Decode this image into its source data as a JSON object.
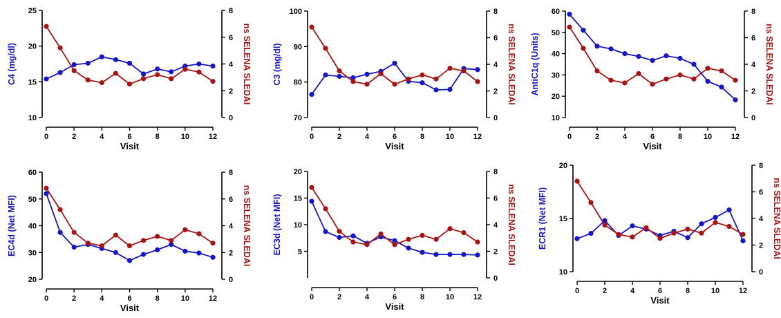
{
  "colors": {
    "left_series": "#1515cc",
    "right_series": "#a81414",
    "axis": "#000000"
  },
  "chart_data": [
    {
      "type": "line",
      "xlabel": "Visit",
      "ylabel": "C4 (mg/dl)",
      "y2label": "ns SELENA SLEDAI",
      "x": [
        0,
        1,
        2,
        3,
        4,
        5,
        6,
        7,
        8,
        9,
        10,
        11,
        12
      ],
      "xticks": [
        0,
        2,
        4,
        6,
        8,
        10,
        12
      ],
      "ylim": [
        10,
        25
      ],
      "yticks": [
        10,
        15,
        20,
        25
      ],
      "y2lim": [
        0,
        8
      ],
      "y2ticks": [
        0,
        2,
        4,
        6,
        8
      ],
      "series": [
        {
          "axis": "left",
          "values": [
            15.4,
            16.3,
            17.4,
            17.6,
            18.5,
            18.1,
            17.6,
            16.1,
            16.8,
            16.4,
            17.2,
            17.5,
            17.2
          ]
        },
        {
          "axis": "right",
          "values": [
            6.8,
            5.2,
            3.5,
            2.8,
            2.6,
            3.3,
            2.5,
            2.9,
            3.2,
            2.9,
            3.6,
            3.4,
            2.7
          ]
        }
      ]
    },
    {
      "type": "line",
      "xlabel": "Visit",
      "ylabel": "C3 (mg/dl)",
      "y2label": "ns SELENA SLEDAI",
      "x": [
        0,
        1,
        2,
        3,
        4,
        5,
        6,
        7,
        8,
        9,
        10,
        11,
        12
      ],
      "xticks": [
        0,
        2,
        4,
        6,
        8,
        10,
        12
      ],
      "ylim": [
        70,
        100
      ],
      "yticks": [
        70,
        80,
        90,
        100
      ],
      "y2lim": [
        0,
        8
      ],
      "y2ticks": [
        0,
        2,
        4,
        6,
        8
      ],
      "series": [
        {
          "axis": "left",
          "values": [
            76.5,
            82,
            81.6,
            81.2,
            82.2,
            83,
            85.3,
            80.2,
            79.8,
            77.8,
            77.9,
            83.8,
            83.5
          ]
        },
        {
          "axis": "right",
          "values": [
            6.8,
            5.2,
            3.5,
            2.7,
            2.5,
            3.3,
            2.5,
            2.9,
            3.2,
            2.9,
            3.7,
            3.5,
            2.7
          ]
        }
      ]
    },
    {
      "type": "line",
      "xlabel": "Visit",
      "ylabel": "AntiC1q (Units)",
      "y2label": "ns SELENA SLEDAI",
      "x": [
        0,
        1,
        2,
        3,
        4,
        5,
        6,
        7,
        8,
        9,
        10,
        11,
        12
      ],
      "xticks": [
        0,
        2,
        4,
        6,
        8,
        10,
        12
      ],
      "ylim": [
        10,
        60
      ],
      "yticks": [
        10,
        20,
        30,
        40,
        50,
        60
      ],
      "y2lim": [
        0,
        8
      ],
      "y2ticks": [
        0,
        2,
        4,
        6,
        8
      ],
      "series": [
        {
          "axis": "left",
          "values": [
            58.5,
            51,
            43.5,
            42.2,
            40,
            38.7,
            36.8,
            39,
            37.8,
            35,
            27,
            24.3,
            18.3
          ]
        },
        {
          "axis": "right",
          "values": [
            6.8,
            5.2,
            3.5,
            2.8,
            2.6,
            3.3,
            2.5,
            2.9,
            3.2,
            2.9,
            3.7,
            3.5,
            2.8
          ]
        }
      ]
    },
    {
      "type": "line",
      "xlabel": "Visit",
      "ylabel": "EC4d (Net MFI)",
      "y2label": "ns SELENA SLEDAI",
      "x": [
        0,
        1,
        2,
        3,
        4,
        5,
        6,
        7,
        8,
        9,
        10,
        11,
        12
      ],
      "xticks": [
        0,
        2,
        4,
        6,
        8,
        10,
        12
      ],
      "ylim": [
        20,
        60
      ],
      "yticks": [
        20,
        30,
        40,
        50,
        60
      ],
      "y2lim": [
        0,
        8
      ],
      "y2ticks": [
        0,
        2,
        4,
        6,
        8
      ],
      "series": [
        {
          "axis": "left",
          "values": [
            52,
            37.5,
            32,
            33,
            31.5,
            30,
            27,
            29.3,
            31,
            33,
            30.5,
            29.8,
            28.2
          ]
        },
        {
          "axis": "right",
          "values": [
            6.8,
            5.2,
            3.5,
            2.7,
            2.5,
            3.3,
            2.5,
            2.9,
            3.2,
            2.9,
            3.7,
            3.4,
            2.7
          ]
        }
      ]
    },
    {
      "type": "line",
      "xlabel": "Visit",
      "ylabel": "EC3d (Net MFI)",
      "y2label": "ns SELENA SLEDAI",
      "x": [
        0,
        1,
        2,
        3,
        4,
        5,
        6,
        7,
        8,
        9,
        10,
        11,
        12
      ],
      "xticks": [
        0,
        2,
        4,
        6,
        8,
        10,
        12
      ],
      "ylim": [
        0,
        20
      ],
      "yticks": [
        5,
        10,
        15,
        20
      ],
      "y2lim": [
        0,
        8
      ],
      "y2ticks": [
        0,
        2,
        4,
        6,
        8
      ],
      "series": [
        {
          "axis": "left",
          "values": [
            14.4,
            8.7,
            7.6,
            7.9,
            6.5,
            7.7,
            7,
            5.6,
            4.8,
            4.4,
            4.4,
            4.4,
            4.3
          ]
        },
        {
          "axis": "right",
          "values": [
            6.8,
            5.2,
            3.5,
            2.7,
            2.5,
            3.3,
            2.5,
            2.9,
            3.2,
            2.9,
            3.7,
            3.4,
            2.7
          ]
        }
      ]
    },
    {
      "type": "line",
      "xlabel": "Visit",
      "ylabel": "ECR1 (Net MFI)",
      "y2label": "ns SELENA SLEDAI",
      "x": [
        0,
        1,
        2,
        3,
        4,
        5,
        6,
        7,
        8,
        9,
        10,
        11,
        12
      ],
      "xticks": [
        0,
        2,
        4,
        6,
        8,
        10,
        12
      ],
      "ylim": [
        10,
        20
      ],
      "yticks": [
        10,
        15,
        20
      ],
      "y2lim": [
        0,
        8
      ],
      "y2ticks": [
        0,
        2,
        4,
        6,
        8
      ],
      "series": [
        {
          "axis": "left",
          "values": [
            13.1,
            13.6,
            14.8,
            13.4,
            14.3,
            14,
            13.4,
            13.8,
            13.2,
            14.5,
            15.1,
            15.8,
            12.9
          ]
        },
        {
          "axis": "right",
          "values": [
            6.8,
            5.2,
            3.5,
            2.8,
            2.6,
            3.3,
            2.5,
            2.9,
            3.2,
            2.9,
            3.7,
            3.4,
            2.8
          ]
        }
      ]
    }
  ]
}
